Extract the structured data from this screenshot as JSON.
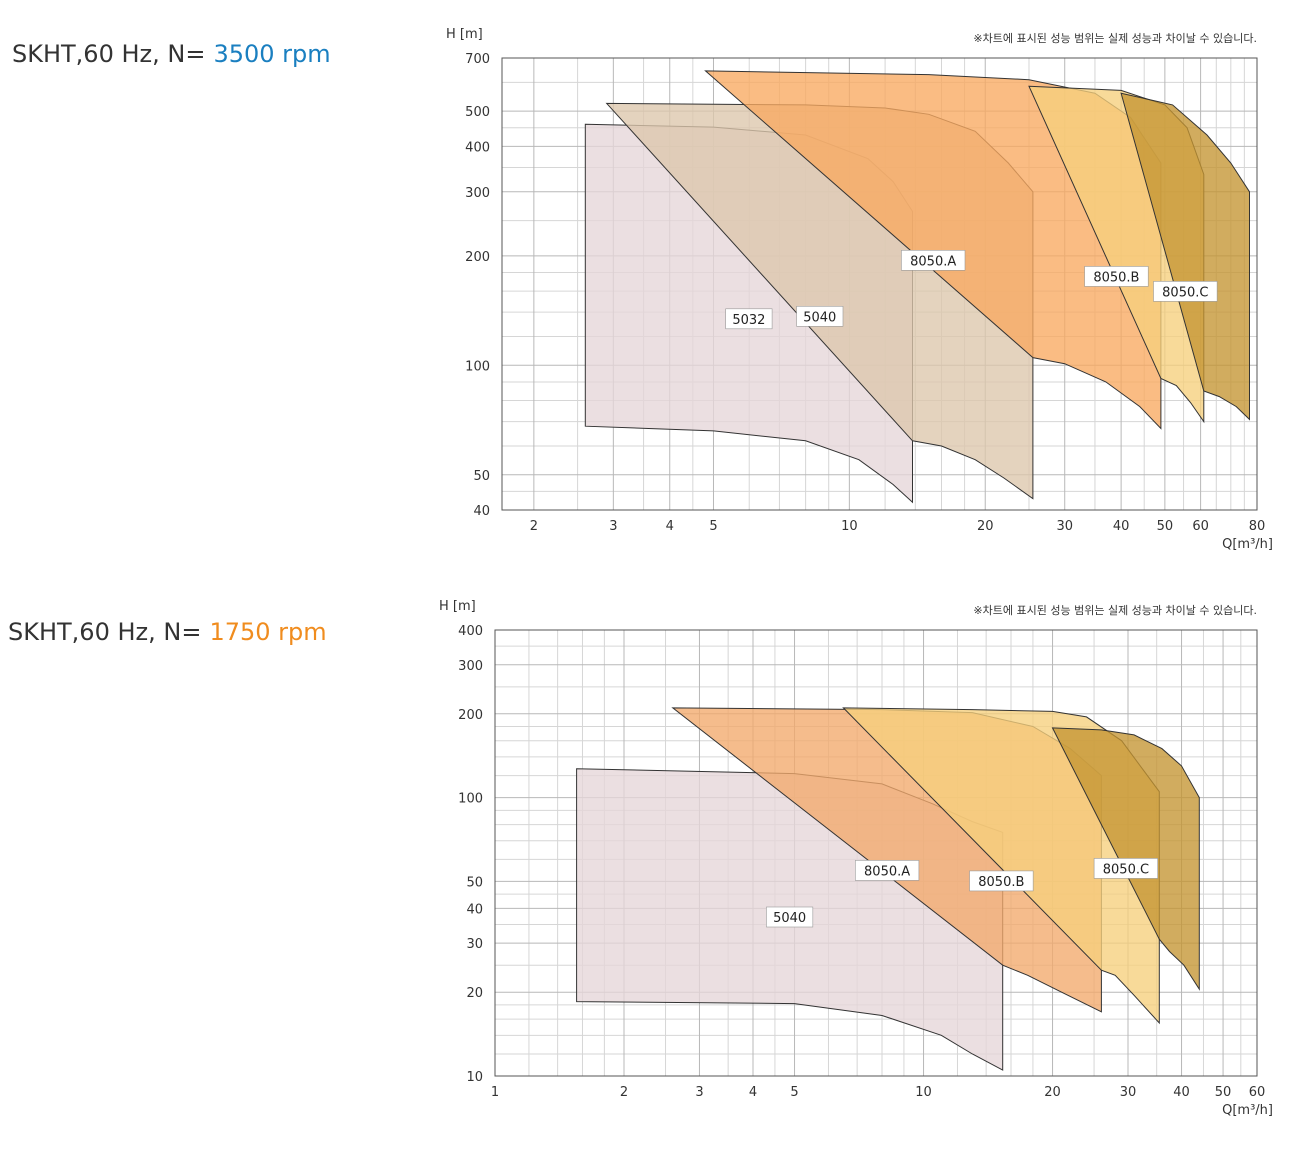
{
  "charts": [
    {
      "heading_prefix": "SKHT,60 Hz, N=",
      "heading_rpm": "3500 rpm",
      "rpm_color": "#1a7fc0",
      "note": "※차트에 표시된 성능 범위는 실제 성능과 차이날 수 있습니다.",
      "ylabel": "H [m]",
      "xlabel": "Q[m³/h]"
    },
    {
      "heading_prefix": "SKHT,60 Hz, N=",
      "heading_rpm": "1750 rpm",
      "rpm_color": "#f08c1e",
      "note": "※차트에 표시된 성능 범위는 실제 성능과 차이날 수 있습니다.",
      "ylabel": "H [m]",
      "xlabel": "Q[m³/h]"
    }
  ],
  "chart_data": [
    {
      "type": "area",
      "title": "SKHT,60 Hz, N= 3500 rpm",
      "xlabel": "Q[m³/h]",
      "ylabel": "H [m]",
      "xscale": "log",
      "yscale": "log",
      "xlim": [
        1.7,
        80
      ],
      "ylim": [
        40,
        700
      ],
      "xticks": [
        2,
        3,
        4,
        5,
        10,
        20,
        30,
        40,
        50,
        60,
        80
      ],
      "yticks": [
        40,
        50,
        100,
        200,
        300,
        400,
        500,
        700
      ],
      "grid": true,
      "series": [
        {
          "name": "5032",
          "color": "#e5d6d8",
          "top": [
            [
              2.6,
              460
            ],
            [
              5,
              452
            ],
            [
              8,
              430
            ],
            [
              11,
              370
            ],
            [
              12.5,
              320
            ],
            [
              13.8,
              265
            ]
          ],
          "bottom": [
            [
              2.6,
              68
            ],
            [
              5,
              66
            ],
            [
              8,
              62
            ],
            [
              10.5,
              55
            ],
            [
              12.5,
              47
            ],
            [
              13.8,
              42
            ]
          ]
        },
        {
          "name": "5040",
          "color": "#dcc6ac",
          "top": [
            [
              2.9,
              525
            ],
            [
              8,
              520
            ],
            [
              12,
              510
            ],
            [
              15,
              490
            ],
            [
              19,
              440
            ],
            [
              22.5,
              360
            ],
            [
              25.5,
              300
            ]
          ],
          "bottom": [
            [
              13.8,
              62
            ],
            [
              16,
              60
            ],
            [
              19,
              55
            ],
            [
              22,
              49
            ],
            [
              25.5,
              43
            ]
          ]
        },
        {
          "name": "8050.A",
          "color": "#f8a960",
          "top": [
            [
              4.8,
              645
            ],
            [
              15,
              630
            ],
            [
              25,
              610
            ],
            [
              35,
              560
            ],
            [
              42,
              480
            ],
            [
              49,
              360
            ]
          ],
          "bottom": [
            [
              25.5,
              105
            ],
            [
              30,
              101
            ],
            [
              37,
              90
            ],
            [
              44,
              77
            ],
            [
              49,
              67
            ]
          ]
        },
        {
          "name": "8050.B",
          "color": "#f6cf7c",
          "top": [
            [
              25,
              585
            ],
            [
              40,
              570
            ],
            [
              50,
              520
            ],
            [
              56,
              450
            ],
            [
              61,
              335
            ]
          ],
          "bottom": [
            [
              49,
              92
            ],
            [
              53,
              88
            ],
            [
              57,
              79
            ],
            [
              61,
              70
            ]
          ]
        },
        {
          "name": "8050.C",
          "color": "#c49532",
          "top": [
            [
              40,
              560
            ],
            [
              52,
              520
            ],
            [
              62,
              430
            ],
            [
              70,
              360
            ],
            [
              77,
              300
            ]
          ],
          "bottom": [
            [
              61,
              85
            ],
            [
              66,
              82
            ],
            [
              72,
              77
            ],
            [
              77,
              71
            ]
          ]
        }
      ]
    },
    {
      "type": "area",
      "title": "SKHT,60 Hz, N= 1750 rpm",
      "xlabel": "Q[m³/h]",
      "ylabel": "H [m]",
      "xscale": "log",
      "yscale": "log",
      "xlim": [
        1,
        60
      ],
      "ylim": [
        10,
        400
      ],
      "xticks": [
        1,
        2,
        3,
        4,
        5,
        10,
        20,
        30,
        40,
        50,
        60
      ],
      "yticks": [
        10,
        20,
        30,
        40,
        50,
        100,
        200,
        300,
        400
      ],
      "grid": true,
      "series": [
        {
          "name": "5040",
          "color": "#e5d6d8",
          "top": [
            [
              1.55,
              127
            ],
            [
              5,
              122
            ],
            [
              8,
              112
            ],
            [
              10.5,
              95
            ],
            [
              13,
              82
            ],
            [
              15.3,
              75
            ]
          ],
          "bottom": [
            [
              1.55,
              18.5
            ],
            [
              5,
              18.2
            ],
            [
              8,
              16.5
            ],
            [
              11,
              14
            ],
            [
              13,
              12
            ],
            [
              15.3,
              10.5
            ]
          ]
        },
        {
          "name": "8050.A",
          "color": "#f2a96c",
          "top": [
            [
              2.6,
              210
            ],
            [
              8,
              207
            ],
            [
              13,
              202
            ],
            [
              18,
              180
            ],
            [
              22,
              150
            ],
            [
              26,
              120
            ]
          ],
          "bottom": [
            [
              15.3,
              25
            ],
            [
              17.5,
              23
            ],
            [
              21,
              20
            ],
            [
              26,
              17
            ]
          ]
        },
        {
          "name": "8050.B",
          "color": "#f6cf7c",
          "top": [
            [
              6.5,
              210
            ],
            [
              13,
              207
            ],
            [
              20,
              204
            ],
            [
              24,
              195
            ],
            [
              29,
              160
            ],
            [
              35.5,
              105
            ]
          ],
          "bottom": [
            [
              26,
              24
            ],
            [
              28,
              23
            ],
            [
              31,
              19.5
            ],
            [
              35.5,
              15.5
            ]
          ]
        },
        {
          "name": "8050.C",
          "color": "#c49532",
          "top": [
            [
              20,
              178
            ],
            [
              26,
              175
            ],
            [
              31,
              168
            ],
            [
              36,
              150
            ],
            [
              40,
              130
            ],
            [
              44,
              100
            ]
          ],
          "bottom": [
            [
              35.5,
              31
            ],
            [
              37.5,
              28
            ],
            [
              40.5,
              25
            ],
            [
              44,
              20.5
            ]
          ]
        }
      ]
    }
  ]
}
